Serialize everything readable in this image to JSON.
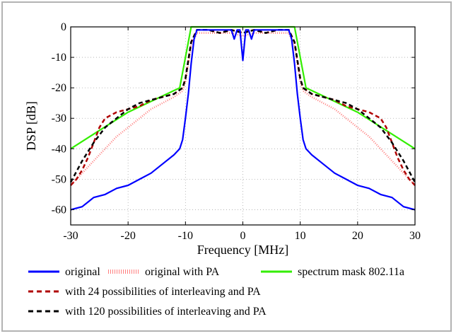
{
  "chart_data": {
    "type": "line",
    "title": "",
    "xlabel": "Frequency [MHz]",
    "ylabel": "DSP [dB]",
    "xlim": [
      -30,
      30
    ],
    "ylim": [
      -65,
      0
    ],
    "xticks": [
      -30,
      -20,
      -10,
      0,
      10,
      20,
      30
    ],
    "yticks": [
      0,
      -10,
      -20,
      -30,
      -40,
      -50,
      -60
    ],
    "grid": true,
    "legend_position": "bottom",
    "series": [
      {
        "name": "original",
        "color": "#0000ff",
        "style": "solid",
        "x": [
          -30,
          -28,
          -26,
          -24,
          -22,
          -20,
          -18,
          -16,
          -14,
          -12,
          -11,
          -10.5,
          -10,
          -9.5,
          -9,
          -8.5,
          -8,
          -7,
          -5,
          -3,
          -2,
          -1.5,
          -1,
          -0.5,
          0,
          0.5,
          1,
          1.5,
          2,
          3,
          5,
          7,
          8,
          8.5,
          9,
          9.5,
          10,
          10.5,
          11,
          12,
          14,
          16,
          18,
          20,
          22,
          24,
          26,
          28,
          30
        ],
        "y": [
          -60,
          -59,
          -56,
          -55,
          -53,
          -52,
          -50,
          -48,
          -45,
          -42,
          -40,
          -37,
          -30,
          -22,
          -12,
          -4,
          -1,
          -1,
          -1,
          -1,
          -1,
          -4,
          -1,
          -1,
          -11,
          -1,
          -1,
          -4,
          -1,
          -1,
          -1,
          -1,
          -1,
          -4,
          -12,
          -22,
          -30,
          -37,
          -40,
          -42,
          -45,
          -48,
          -50,
          -52,
          -53,
          -55,
          -56,
          -59,
          -60
        ]
      },
      {
        "name": "original with PA",
        "color": "#ff7f7f",
        "style": "dotted",
        "x": [
          -30,
          -28,
          -26,
          -24,
          -22,
          -20,
          -18,
          -16,
          -14,
          -12,
          -10.5,
          -10,
          -9,
          -8,
          -6,
          -4,
          -2,
          0,
          2,
          4,
          6,
          8,
          9,
          10,
          10.5,
          12,
          14,
          16,
          18,
          20,
          22,
          24,
          26,
          28,
          30
        ],
        "y": [
          -52,
          -48,
          -44,
          -40,
          -36,
          -33,
          -30,
          -27,
          -25,
          -23,
          -21,
          -18,
          -6,
          -2,
          -2,
          -2,
          -2,
          -3,
          -2,
          -2,
          -2,
          -2,
          -6,
          -18,
          -21,
          -23,
          -25,
          -27,
          -30,
          -33,
          -36,
          -40,
          -44,
          -48,
          -52
        ]
      },
      {
        "name": "spectrum mask 802.11a",
        "color": "#33ee00",
        "style": "solid",
        "x": [
          -30,
          -20,
          -11,
          -9,
          9,
          11,
          20,
          30
        ],
        "y": [
          -40,
          -28,
          -20,
          0,
          0,
          -20,
          -28,
          -40
        ]
      },
      {
        "name": "with 24 possibilities of interleaving and PA",
        "color": "#b00000",
        "style": "dashed",
        "x": [
          -30,
          -29,
          -28,
          -27,
          -26,
          -25,
          -24,
          -22,
          -20,
          -18,
          -16,
          -14,
          -12,
          -10.5,
          -10,
          -9,
          -8,
          -6,
          -4,
          -2,
          0,
          2,
          4,
          6,
          8,
          9,
          10,
          10.5,
          12,
          14,
          16,
          18,
          20,
          22,
          24,
          25,
          26,
          27,
          28,
          29,
          30
        ],
        "y": [
          -52,
          -50,
          -47,
          -43,
          -38,
          -33,
          -30,
          -28,
          -27,
          -26,
          -24,
          -23,
          -22,
          -20,
          -17,
          -5,
          -1,
          -1,
          -2,
          -1,
          -2,
          -1,
          -2,
          -1,
          -1,
          -5,
          -17,
          -20,
          -22,
          -23,
          -24,
          -26,
          -27,
          -28,
          -30,
          -33,
          -38,
          -43,
          -47,
          -50,
          -52
        ]
      },
      {
        "name": "with 120 possibilities of interleaving and PA",
        "color": "#000000",
        "style": "dashed",
        "x": [
          -30,
          -28,
          -26,
          -24,
          -22,
          -20,
          -18,
          -16,
          -14,
          -12,
          -10.5,
          -10,
          -9,
          -8,
          -6,
          -4,
          -2,
          0,
          2,
          4,
          6,
          8,
          9,
          10,
          10.5,
          12,
          14,
          16,
          18,
          20,
          22,
          24,
          26,
          28,
          30
        ],
        "y": [
          -51,
          -44,
          -38,
          -33,
          -30,
          -27,
          -25,
          -24,
          -23,
          -22,
          -20,
          -17,
          -5,
          -1,
          -1,
          -2,
          -1,
          -2,
          -1,
          -2,
          -1,
          -1,
          -5,
          -17,
          -20,
          -22,
          -23,
          -24,
          -25,
          -27,
          -30,
          -33,
          -38,
          -44,
          -51
        ]
      }
    ]
  }
}
